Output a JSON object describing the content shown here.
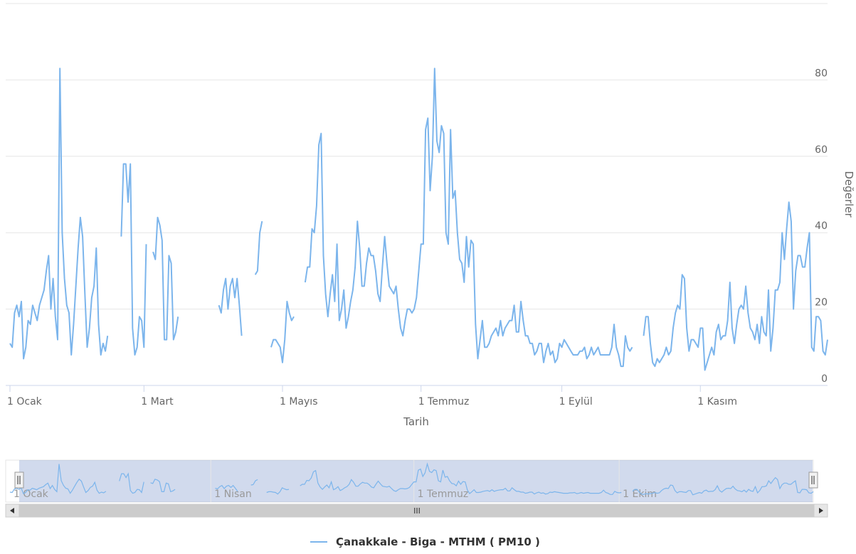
{
  "chart_data": {
    "type": "line",
    "title": "",
    "xlabel": "Tarih",
    "ylabel": "Değerler",
    "ylim": [
      0,
      100
    ],
    "y_ticks": [
      0,
      20,
      40,
      60,
      80
    ],
    "x_tick_labels": [
      {
        "label": "1 Ocak",
        "day": 0
      },
      {
        "label": "1 Mart",
        "day": 59
      },
      {
        "label": "1 Mayıs",
        "day": 120
      },
      {
        "label": "1 Temmuz",
        "day": 181
      },
      {
        "label": "1 Eylül",
        "day": 243
      },
      {
        "label": "1 Kasım",
        "day": 304
      }
    ],
    "grid": true,
    "legend_position": "bottom-center",
    "series": [
      {
        "name": "Çanakkale - Biga - MTHM ( PM10 )",
        "color": "#7cb5ec",
        "values": [
          11,
          10,
          19,
          21,
          18,
          22,
          7,
          10,
          17,
          16,
          21,
          19,
          17,
          21,
          23,
          25,
          30,
          34,
          20,
          28,
          18,
          12,
          83,
          40,
          28,
          21,
          19,
          8,
          16,
          26,
          36,
          44,
          39,
          24,
          10,
          15,
          23,
          26,
          36,
          16,
          8,
          11,
          9,
          13,
          null,
          null,
          null,
          null,
          null,
          39,
          58,
          58,
          48,
          58,
          15,
          8,
          10,
          18,
          17,
          10,
          37,
          null,
          null,
          35,
          33,
          44,
          42,
          38,
          12,
          12,
          34,
          32,
          12,
          14,
          18,
          null,
          null,
          null,
          null,
          null,
          null,
          null,
          null,
          null,
          null,
          null,
          null,
          null,
          null,
          null,
          null,
          null,
          21,
          19,
          25,
          28,
          20,
          26,
          28,
          23,
          28,
          21,
          13,
          null,
          null,
          null,
          null,
          null,
          29,
          30,
          40,
          43,
          null,
          null,
          null,
          10,
          12,
          12,
          11,
          10,
          6,
          12,
          22,
          19,
          17,
          18,
          null,
          null,
          null,
          null,
          27,
          31,
          31,
          41,
          40,
          47,
          63,
          66,
          34,
          24,
          18,
          24,
          29,
          22,
          37,
          17,
          20,
          25,
          15,
          18,
          22,
          25,
          31,
          43,
          36,
          26,
          26,
          32,
          36,
          34,
          34,
          30,
          24,
          22,
          31,
          39,
          32,
          26,
          25,
          24,
          26,
          20,
          15,
          13,
          17,
          20,
          20,
          19,
          20,
          23,
          30,
          37,
          37,
          67,
          70,
          51,
          60,
          83,
          64,
          61,
          68,
          66,
          40,
          37,
          67,
          49,
          51,
          40,
          33,
          32,
          27,
          39,
          31,
          38,
          37,
          16,
          7,
          12,
          17,
          10,
          10,
          11,
          13,
          14,
          15,
          13,
          17,
          13,
          15,
          16,
          17,
          17,
          21,
          14,
          14,
          22,
          17,
          13,
          13,
          11,
          11,
          8,
          9,
          11,
          11,
          6,
          9,
          11,
          8,
          9,
          6,
          7,
          11,
          10,
          12,
          11,
          10,
          9,
          8,
          8,
          8,
          9,
          9,
          10,
          7,
          8,
          10,
          8,
          9,
          10,
          8,
          8,
          8,
          8,
          8,
          10,
          16,
          10,
          8,
          5,
          5,
          13,
          10,
          9,
          10,
          null,
          null,
          null,
          null,
          13,
          18,
          18,
          11,
          6,
          5,
          7,
          6,
          7,
          8,
          10,
          8,
          9,
          15,
          19,
          21,
          20,
          29,
          28,
          15,
          9,
          12,
          12,
          11,
          10,
          15,
          15,
          4,
          6,
          8,
          10,
          8,
          14,
          16,
          12,
          13,
          13,
          17,
          27,
          15,
          11,
          16,
          20,
          21,
          20,
          26,
          19,
          15,
          14,
          12,
          16,
          11,
          18,
          14,
          13,
          25,
          9,
          15,
          25,
          25,
          27,
          40,
          33,
          41,
          48,
          43,
          20,
          30,
          34,
          34,
          31,
          31,
          36,
          40,
          10,
          9,
          18,
          18,
          17,
          9,
          8,
          12
        ]
      }
    ],
    "navigator": {
      "x_tick_labels": [
        {
          "label": "1 Ocak",
          "day": 0
        },
        {
          "label": "1 Nisan",
          "day": 90
        },
        {
          "label": "1 Temmuz",
          "day": 181
        },
        {
          "label": "1 Ekim",
          "day": 273
        }
      ]
    },
    "scrollbar": {
      "grip_label": "III"
    }
  }
}
